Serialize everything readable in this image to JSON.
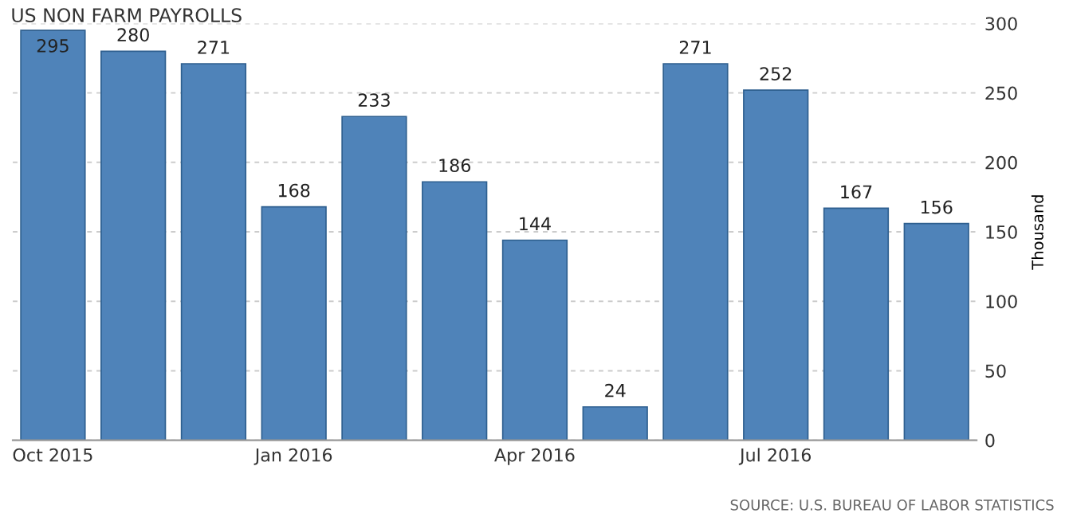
{
  "chart_data": {
    "type": "bar",
    "title": "US NON FARM PAYROLLS",
    "ylabel": "Thousand",
    "categories": [
      "Oct 2015",
      null,
      null,
      "Jan 2016",
      null,
      null,
      "Apr 2016",
      null,
      null,
      "Jul 2016",
      null,
      null
    ],
    "values": [
      295,
      280,
      271,
      168,
      233,
      186,
      144,
      24,
      271,
      252,
      167,
      156
    ],
    "color": "#4f83b9",
    "ylim": [
      0,
      300
    ],
    "yticks": [
      0,
      50,
      100,
      150,
      200,
      250,
      300
    ],
    "grid": "y",
    "data_labels": true,
    "annotations": [
      "SOURCE: U.S. BUREAU OF LABOR STATISTICS"
    ]
  }
}
